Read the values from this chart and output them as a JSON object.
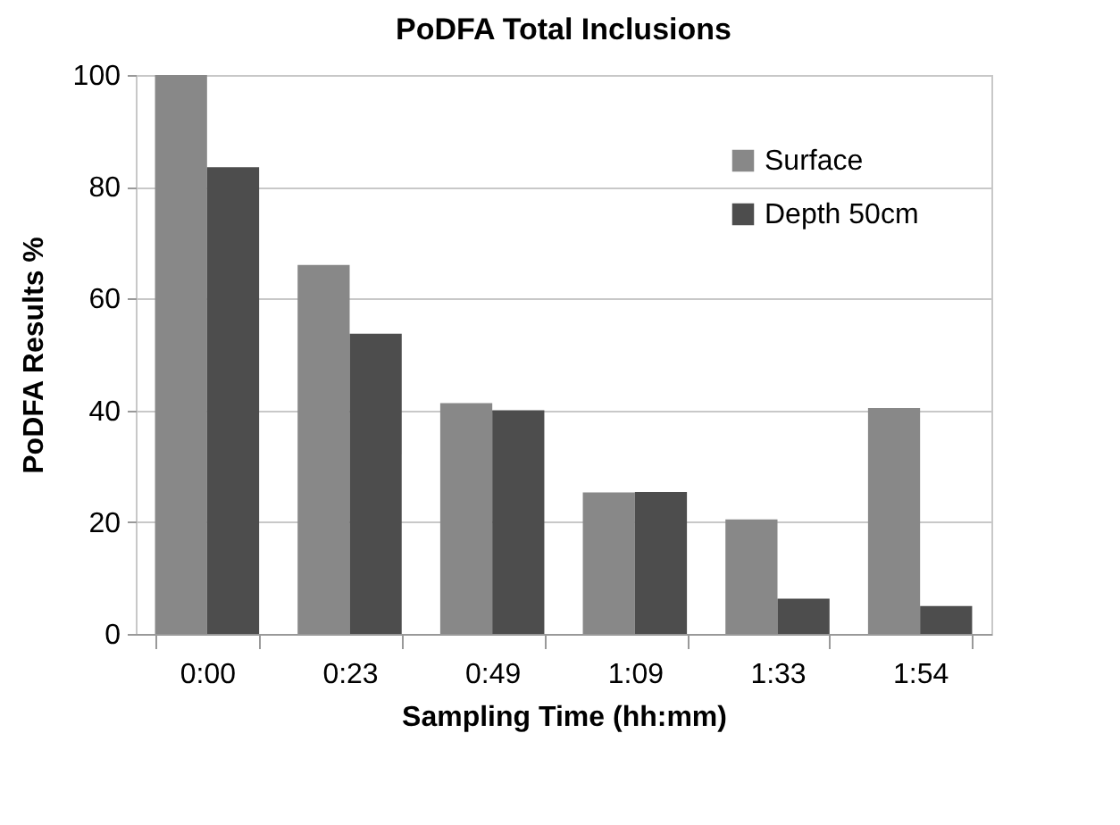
{
  "chart_data": {
    "type": "bar",
    "title": "PoDFA Total Inclusions",
    "xlabel": "Sampling Time (hh:mm)",
    "ylabel": "PoDFA Results %",
    "categories": [
      "0:00",
      "0:23",
      "0:49",
      "1:09",
      "1:33",
      "1:54"
    ],
    "series": [
      {
        "name": "Surface",
        "color": "#888888",
        "values": [
          100,
          66,
          41.3,
          25.3,
          20.5,
          40.4
        ]
      },
      {
        "name": "Depth 50cm",
        "color": "#4d4d4d",
        "values": [
          83.5,
          53.7,
          40,
          25.4,
          6.3,
          5
        ]
      }
    ],
    "ylim": [
      0,
      100
    ],
    "yticks": [
      0,
      20,
      40,
      60,
      80,
      100
    ],
    "grid": "y",
    "legend": "top right"
  }
}
